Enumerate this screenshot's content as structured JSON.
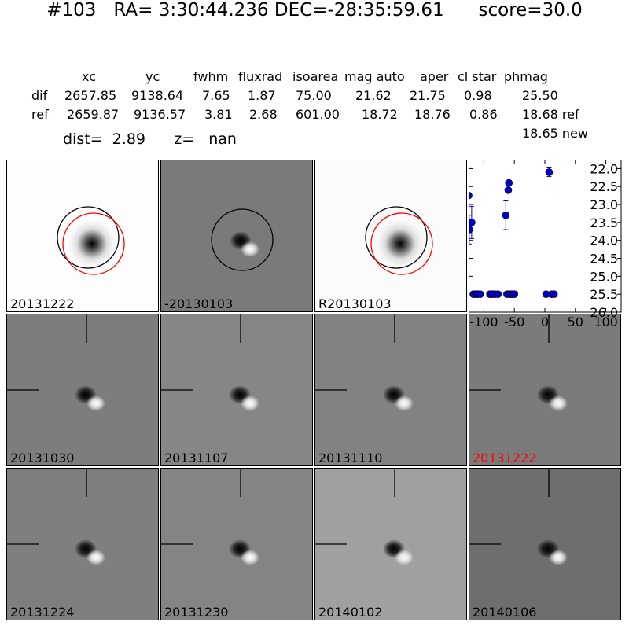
{
  "title": "#103   RA= 3:30:44.236 DEC=-28:35:59.61      score=30.0",
  "table": {
    "headers": [
      "xc",
      "yc",
      "fwhm",
      "fluxrad",
      "isoarea",
      "mag auto",
      "aper",
      "cl star",
      "phmag"
    ],
    "rows": [
      {
        "label": "dif",
        "values": [
          "2657.85",
          "9138.64",
          "7.65",
          "1.87",
          "75.00",
          "21.62",
          "21.75",
          "0.98",
          "25.50"
        ]
      },
      {
        "label": "ref",
        "values": [
          "2659.87",
          "9136.57",
          "3.81",
          "2.68",
          "601.00",
          "18.72",
          "18.76",
          "0.86",
          "18.68 ref"
        ]
      }
    ],
    "extra": "18.65 new"
  },
  "dist_line": "dist=  2.89      z=   nan",
  "panels": [
    {
      "label": "20131222",
      "type": "ref",
      "bg": "#fdfdfd"
    },
    {
      "label": "-20130103",
      "type": "diff",
      "bg": "#7a7a7a"
    },
    {
      "label": "R20130103",
      "type": "ref",
      "bg": "#fbfbfb"
    },
    {
      "label": "20131030",
      "type": "stamp",
      "bg": "#7d7d7d"
    },
    {
      "label": "20131107",
      "type": "stamp",
      "bg": "#868686"
    },
    {
      "label": "20131110",
      "type": "stamp",
      "bg": "#828282"
    },
    {
      "label": "20131222",
      "type": "stamp",
      "bg": "#7b7b7b",
      "highlight": true
    },
    {
      "label": "20131224",
      "type": "stamp",
      "bg": "#7f7f7f"
    },
    {
      "label": "20131230",
      "type": "stamp",
      "bg": "#848484"
    },
    {
      "label": "20140102",
      "type": "stamp",
      "bg": "#a0a0a0"
    },
    {
      "label": "20140106",
      "type": "stamp",
      "bg": "#6e6e6e"
    }
  ],
  "colors": {
    "marker": "#0000cc",
    "highlight": "#ff0000",
    "circle_red": "#ff0000",
    "circle_black": "#000000"
  },
  "chart_data": {
    "type": "scatter",
    "xlim": [
      -125,
      125
    ],
    "ylim": [
      26.0,
      21.75
    ],
    "y_inverted": true,
    "xticks": [
      -100,
      -50,
      0,
      50,
      100
    ],
    "yticks": [
      22.0,
      22.5,
      23.0,
      23.5,
      24.0,
      24.5,
      25.0,
      25.5,
      26.0
    ],
    "series": [
      {
        "points": [
          {
            "x": -125,
            "y": 22.75
          },
          {
            "x": -124,
            "y": 23.7,
            "err": 0.4
          },
          {
            "x": -120,
            "y": 23.5,
            "err": 0.45
          },
          {
            "x": -117,
            "y": 25.5
          },
          {
            "x": -113,
            "y": 25.5
          },
          {
            "x": -110,
            "y": 25.5
          },
          {
            "x": -106,
            "y": 25.5
          },
          {
            "x": -90,
            "y": 25.5
          },
          {
            "x": -86,
            "y": 25.5
          },
          {
            "x": -82,
            "y": 25.5
          },
          {
            "x": -77,
            "y": 25.5
          },
          {
            "x": -64,
            "y": 23.3,
            "err": 0.4
          },
          {
            "x": -62,
            "y": 25.5
          },
          {
            "x": -60,
            "y": 22.6
          },
          {
            "x": -59,
            "y": 22.4
          },
          {
            "x": -57,
            "y": 25.5
          },
          {
            "x": -54,
            "y": 25.5
          },
          {
            "x": -50,
            "y": 25.5
          },
          {
            "x": 2,
            "y": 25.5
          },
          {
            "x": 7,
            "y": 22.1,
            "err": 0.12
          },
          {
            "x": 11,
            "y": 25.5
          },
          {
            "x": 15,
            "y": 25.5
          }
        ]
      }
    ]
  }
}
